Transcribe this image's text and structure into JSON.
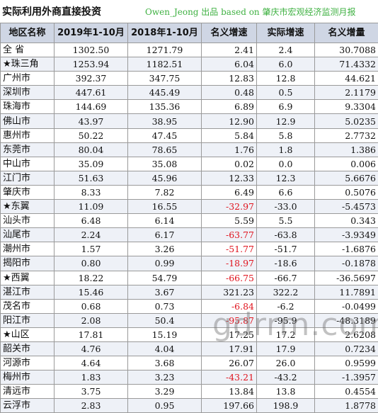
{
  "header": {
    "title": "实际利用外商直接投资",
    "source": "Owen_Jeong 出品 based on 肇庆市宏观经济监测月报"
  },
  "table": {
    "columns": [
      "地区名称",
      "2019年1-10月",
      "2018年1-10月",
      "名义增速",
      "实际增速",
      "名义增量"
    ],
    "rows": [
      {
        "region": "全 省",
        "y2019": "1302.50",
        "y2018": "1271.79",
        "nominal_growth": "2.41",
        "real_growth": "2.4",
        "nominal_increment": "30.7088",
        "neg": false
      },
      {
        "region": "★珠三角",
        "y2019": "1253.94",
        "y2018": "1182.51",
        "nominal_growth": "6.04",
        "real_growth": "6.0",
        "nominal_increment": "71.4332",
        "neg": false
      },
      {
        "region": "广州市",
        "y2019": "392.37",
        "y2018": "347.75",
        "nominal_growth": "12.83",
        "real_growth": "12.8",
        "nominal_increment": "44.621",
        "neg": false
      },
      {
        "region": "深圳市",
        "y2019": "447.61",
        "y2018": "445.49",
        "nominal_growth": "0.48",
        "real_growth": "0.5",
        "nominal_increment": "2.1179",
        "neg": false
      },
      {
        "region": "珠海市",
        "y2019": "144.69",
        "y2018": "135.36",
        "nominal_growth": "6.89",
        "real_growth": "6.9",
        "nominal_increment": "9.3304",
        "neg": false
      },
      {
        "region": "佛山市",
        "y2019": "43.97",
        "y2018": "38.95",
        "nominal_growth": "12.90",
        "real_growth": "12.9",
        "nominal_increment": "5.0235",
        "neg": false
      },
      {
        "region": "惠州市",
        "y2019": "50.22",
        "y2018": "47.45",
        "nominal_growth": "5.84",
        "real_growth": "5.8",
        "nominal_increment": "2.7732",
        "neg": false
      },
      {
        "region": "东莞市",
        "y2019": "80.04",
        "y2018": "78.65",
        "nominal_growth": "1.76",
        "real_growth": "1.8",
        "nominal_increment": "1.386",
        "neg": false
      },
      {
        "region": "中山市",
        "y2019": "35.09",
        "y2018": "35.08",
        "nominal_growth": "0.02",
        "real_growth": "0.0",
        "nominal_increment": "0.006",
        "neg": false
      },
      {
        "region": "江门市",
        "y2019": "51.63",
        "y2018": "45.96",
        "nominal_growth": "12.33",
        "real_growth": "12.3",
        "nominal_increment": "5.6676",
        "neg": false
      },
      {
        "region": "肇庆市",
        "y2019": "8.33",
        "y2018": "7.82",
        "nominal_growth": "6.49",
        "real_growth": "6.6",
        "nominal_increment": "0.5076",
        "neg": false
      },
      {
        "region": "★东翼",
        "y2019": "11.09",
        "y2018": "16.55",
        "nominal_growth": "-32.97",
        "real_growth": "-33.0",
        "nominal_increment": "-5.4573",
        "neg": true
      },
      {
        "region": "汕头市",
        "y2019": "6.48",
        "y2018": "6.14",
        "nominal_growth": "5.59",
        "real_growth": "5.5",
        "nominal_increment": "0.343",
        "neg": false
      },
      {
        "region": "汕尾市",
        "y2019": "2.24",
        "y2018": "6.17",
        "nominal_growth": "-63.77",
        "real_growth": "-63.8",
        "nominal_increment": "-3.9349",
        "neg": true
      },
      {
        "region": "潮州市",
        "y2019": "1.57",
        "y2018": "3.26",
        "nominal_growth": "-51.77",
        "real_growth": "-51.7",
        "nominal_increment": "-1.6876",
        "neg": true
      },
      {
        "region": "揭阳市",
        "y2019": "0.80",
        "y2018": "0.99",
        "nominal_growth": "-18.97",
        "real_growth": "-18.6",
        "nominal_increment": "-0.1878",
        "neg": true
      },
      {
        "region": "★西翼",
        "y2019": "18.22",
        "y2018": "54.79",
        "nominal_growth": "-66.75",
        "real_growth": "-66.7",
        "nominal_increment": "-36.5697",
        "neg": true
      },
      {
        "region": "湛江市",
        "y2019": "15.46",
        "y2018": "3.67",
        "nominal_growth": "321.23",
        "real_growth": "322.2",
        "nominal_increment": "11.7891",
        "neg": false
      },
      {
        "region": "茂名市",
        "y2019": "0.68",
        "y2018": "0.73",
        "nominal_growth": "-6.84",
        "real_growth": "-6.2",
        "nominal_increment": "-0.0499",
        "neg": true
      },
      {
        "region": "阳江市",
        "y2019": "2.08",
        "y2018": "50.4",
        "nominal_growth": "-95.87",
        "real_growth": "-95.9",
        "nominal_increment": "-48.3189",
        "neg": true
      },
      {
        "region": "★山区",
        "y2019": "17.81",
        "y2018": "15.19",
        "nominal_growth": "17.25",
        "real_growth": "17.2",
        "nominal_increment": "2.6208",
        "neg": false
      },
      {
        "region": "韶关市",
        "y2019": "4.76",
        "y2018": "4.04",
        "nominal_growth": "17.91",
        "real_growth": "17.9",
        "nominal_increment": "0.7234",
        "neg": false
      },
      {
        "region": "河源市",
        "y2019": "4.64",
        "y2018": "3.68",
        "nominal_growth": "26.07",
        "real_growth": "26.0",
        "nominal_increment": "0.9599",
        "neg": false
      },
      {
        "region": "梅州市",
        "y2019": "1.83",
        "y2018": "3.23",
        "nominal_growth": "-43.21",
        "real_growth": "-43.2",
        "nominal_increment": "-1.3957",
        "neg": true
      },
      {
        "region": "清远市",
        "y2019": "3.75",
        "y2018": "3.29",
        "nominal_growth": "13.84",
        "real_growth": "13.8",
        "nominal_increment": "0.4554",
        "neg": false
      },
      {
        "region": "云浮市",
        "y2019": "2.83",
        "y2018": "0.95",
        "nominal_growth": "197.66",
        "real_growth": "198.9",
        "nominal_increment": "1.8778",
        "neg": false
      }
    ]
  },
  "watermark": "gdrrm.com"
}
